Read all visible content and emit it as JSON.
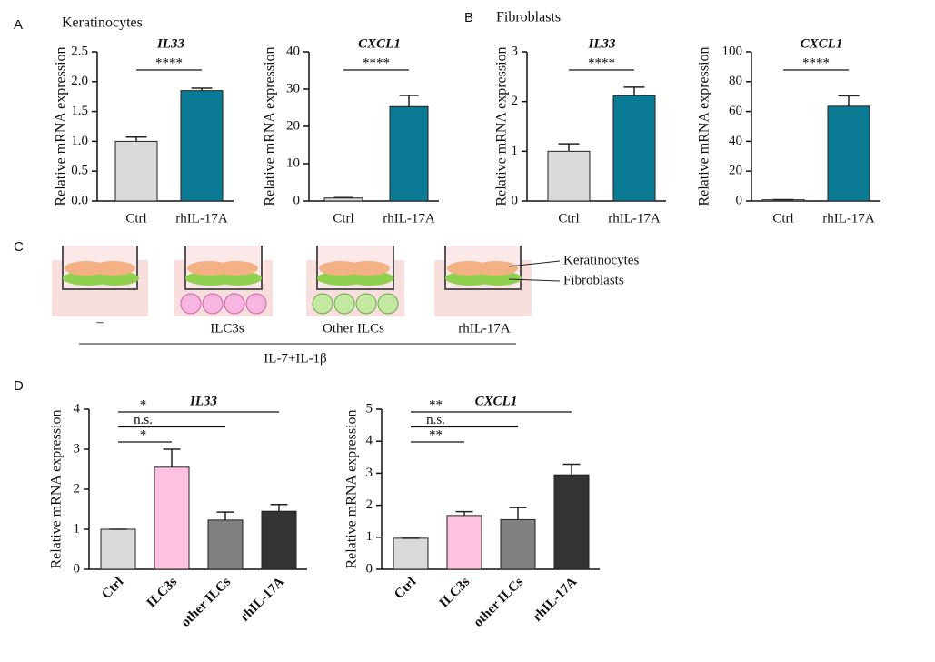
{
  "panels": {
    "a": "A",
    "a_title": "Keratinocytes",
    "b": "B",
    "b_title": "Fibroblasts",
    "c": "C",
    "d": "D"
  },
  "schematic": {
    "cell_labels": [
      "Keratinocytes",
      "Fibroblasts"
    ],
    "conditions": [
      "–",
      "ILC3s",
      "Other ILCs",
      "rhIL-17A"
    ],
    "treatment": "IL-7+IL-1β"
  },
  "chart_data": [
    {
      "type": "bar",
      "title": "IL33",
      "y_label": "Relative mRNA expression",
      "categories": [
        "Ctrl",
        "rhIL-17A"
      ],
      "values": [
        1.0,
        1.85
      ],
      "errors": [
        0.07,
        0.04
      ],
      "colors": [
        "#d9d9d9",
        "#0b7a94"
      ],
      "ylim": [
        0,
        2.5
      ],
      "yticks": [
        {
          "value": 0,
          "label": "0.0"
        },
        0.5,
        {
          "value": 1,
          "label": "1.0"
        },
        1.5,
        {
          "value": 2,
          "label": "2.0"
        },
        2.5
      ],
      "comparisons": [
        {
          "label": "****",
          "pair": [
            0,
            1
          ]
        }
      ]
    },
    {
      "type": "bar",
      "title": "CXCL1",
      "y_label": "Relative mRNA expression",
      "categories": [
        "Ctrl",
        "rhIL-17A"
      ],
      "values": [
        0.8,
        25.3
      ],
      "errors": [
        0.1,
        3.0
      ],
      "colors": [
        "#d9d9d9",
        "#0b7a94"
      ],
      "ylim": [
        0,
        40
      ],
      "yticks": [
        0,
        10,
        20,
        30,
        40
      ],
      "comparisons": [
        {
          "label": "****",
          "pair": [
            0,
            1
          ]
        }
      ]
    },
    {
      "type": "bar",
      "title": "IL33",
      "y_label": "Relative mRNA expression",
      "categories": [
        "Ctrl",
        "rhIL-17A"
      ],
      "values": [
        1.0,
        2.12
      ],
      "errors": [
        0.15,
        0.17
      ],
      "colors": [
        "#d9d9d9",
        "#0b7a94"
      ],
      "ylim": [
        0,
        3
      ],
      "yticks": [
        0,
        1,
        2,
        3
      ],
      "comparisons": [
        {
          "label": "****",
          "pair": [
            0,
            1
          ]
        }
      ]
    },
    {
      "type": "bar",
      "title": "CXCL1",
      "y_label": "Relative mRNA expression",
      "categories": [
        "Ctrl",
        "rhIL-17A"
      ],
      "values": [
        0.8,
        63.5
      ],
      "errors": [
        0.1,
        7.0
      ],
      "colors": [
        "#d9d9d9",
        "#0b7a94"
      ],
      "ylim": [
        0,
        100
      ],
      "yticks": [
        0,
        20,
        40,
        60,
        80,
        100
      ],
      "comparisons": [
        {
          "label": "****",
          "pair": [
            0,
            1
          ]
        }
      ]
    },
    {
      "type": "bar",
      "title": "IL33",
      "y_label": "Relative mRNA expression",
      "categories": [
        "Ctrl",
        "ILC3s",
        "other ILCs",
        "rhIL-17A"
      ],
      "values": [
        1.0,
        2.55,
        1.23,
        1.45
      ],
      "errors": [
        0,
        0.45,
        0.2,
        0.17
      ],
      "colors": [
        "#d9d9d9",
        "#ffc2e0",
        "#808080",
        "#333333"
      ],
      "ylim": [
        0,
        4
      ],
      "yticks": [
        0,
        1,
        2,
        3,
        4
      ],
      "comparisons": [
        {
          "label": "*",
          "pair": [
            0,
            3
          ]
        },
        {
          "label": "n.s.",
          "pair": [
            0,
            2
          ]
        },
        {
          "label": "*",
          "pair": [
            0,
            1
          ]
        }
      ]
    },
    {
      "type": "bar",
      "title": "CXCL1",
      "y_label": "Relative mRNA expression",
      "categories": [
        "Ctrl",
        "ILC3s",
        "other ILCs",
        "rhIL-17A"
      ],
      "values": [
        0.97,
        1.68,
        1.55,
        2.95
      ],
      "errors": [
        0,
        0.12,
        0.38,
        0.33
      ],
      "colors": [
        "#d9d9d9",
        "#ffc2e0",
        "#808080",
        "#333333"
      ],
      "ylim": [
        0,
        5
      ],
      "yticks": [
        0,
        1,
        2,
        3,
        4,
        5
      ],
      "comparisons": [
        {
          "label": "**",
          "pair": [
            0,
            3
          ]
        },
        {
          "label": "n.s.",
          "pair": [
            0,
            2
          ]
        },
        {
          "label": "**",
          "pair": [
            0,
            1
          ]
        }
      ]
    }
  ]
}
